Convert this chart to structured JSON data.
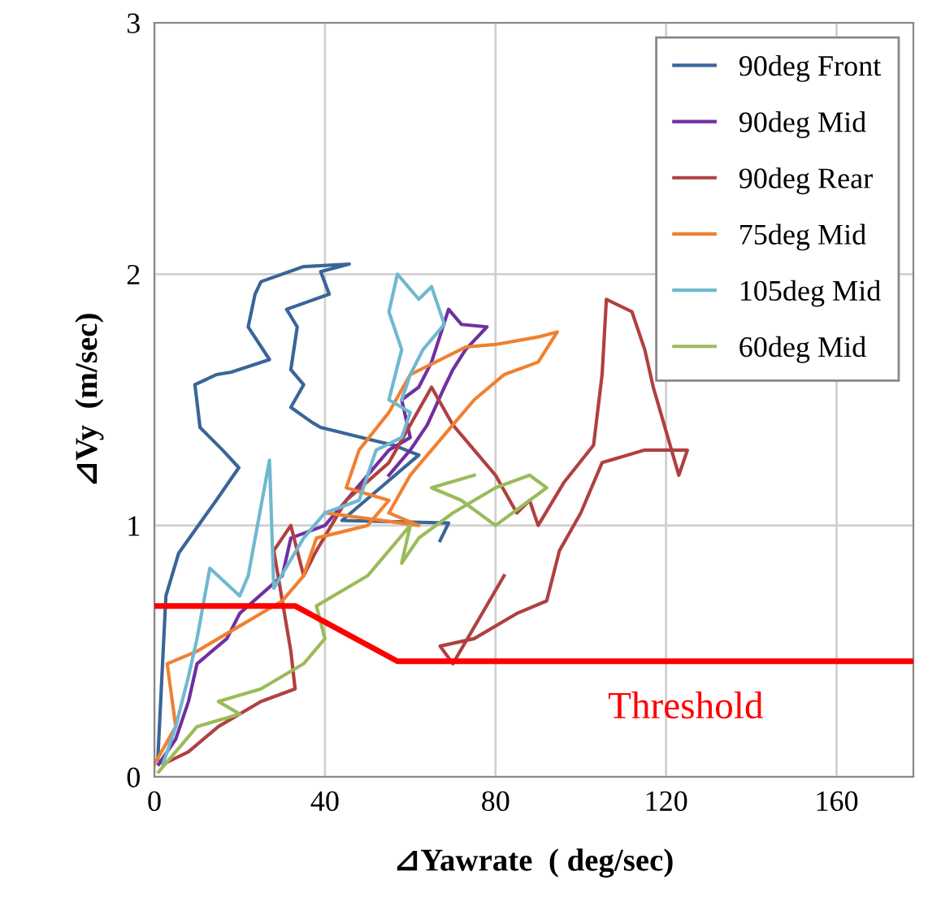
{
  "chart_data": {
    "type": "line",
    "xlabel": "⊿Yawrate  ( deg/sec)",
    "ylabel": "⊿Vy  (m/sec)",
    "xlim": [
      0,
      178
    ],
    "ylim": [
      0,
      3
    ],
    "xticks": [
      0,
      40,
      80,
      120,
      160
    ],
    "yticks": [
      0,
      1,
      2,
      3
    ],
    "grid": true,
    "legend": "top right",
    "marker": "none",
    "line_style": "solid",
    "series": [
      {
        "name": "90deg Front",
        "color": "#3a6598",
        "x": [
          0.8,
          2,
          2.7,
          5.7,
          14.5,
          19.8,
          16,
          10.7,
          10,
          9.5,
          14.5,
          18,
          27,
          22,
          23.6,
          25,
          35,
          45.7,
          39,
          41,
          31,
          33.5,
          32,
          35,
          32,
          37,
          39,
          51,
          56,
          62,
          44,
          69,
          67
        ],
        "values": [
          0.07,
          0.48,
          0.72,
          0.89,
          1.1,
          1.23,
          1.3,
          1.39,
          1.49,
          1.56,
          1.6,
          1.61,
          1.66,
          1.79,
          1.92,
          1.97,
          2.03,
          2.04,
          2.01,
          1.92,
          1.86,
          1.79,
          1.62,
          1.56,
          1.47,
          1.41,
          1.39,
          1.34,
          1.32,
          1.28,
          1.02,
          1.01,
          0.94
        ]
      },
      {
        "name": "90deg Mid",
        "color": "#7030a0",
        "x": [
          1,
          5,
          8,
          10,
          17,
          20,
          30,
          32,
          40,
          45,
          50,
          55,
          60,
          58,
          62,
          65,
          69,
          72,
          78,
          73,
          70,
          68,
          64,
          60,
          55
        ],
        "values": [
          0.05,
          0.15,
          0.3,
          0.45,
          0.55,
          0.65,
          0.8,
          0.95,
          1.0,
          1.1,
          1.2,
          1.3,
          1.35,
          1.5,
          1.55,
          1.65,
          1.86,
          1.8,
          1.79,
          1.7,
          1.62,
          1.55,
          1.4,
          1.3,
          1.2
        ]
      },
      {
        "name": "90deg Rear",
        "color": "#b04040",
        "x": [
          2,
          8,
          15,
          25,
          33,
          32,
          30,
          28,
          32,
          35,
          38,
          45,
          55,
          60,
          65,
          70,
          75,
          80,
          85,
          88,
          90,
          96,
          103,
          105,
          106,
          112,
          115,
          117,
          123,
          125,
          115,
          105,
          100,
          95,
          92,
          85,
          75,
          67,
          70,
          82
        ],
        "values": [
          0.05,
          0.1,
          0.2,
          0.3,
          0.35,
          0.5,
          0.7,
          0.9,
          1.0,
          0.8,
          0.9,
          1.1,
          1.25,
          1.4,
          1.55,
          1.4,
          1.3,
          1.2,
          1.05,
          1.1,
          1.0,
          1.17,
          1.32,
          1.6,
          1.9,
          1.85,
          1.7,
          1.55,
          1.2,
          1.3,
          1.3,
          1.25,
          1.05,
          0.9,
          0.7,
          0.65,
          0.55,
          0.52,
          0.45,
          0.8
        ]
      },
      {
        "name": "75deg Mid",
        "color": "#f08030",
        "x": [
          0,
          5,
          3,
          10,
          20,
          30,
          35,
          38,
          50,
          55,
          45,
          48,
          55,
          60,
          73,
          80,
          90,
          94.5,
          90,
          82,
          75,
          70,
          65,
          60,
          55,
          62,
          40
        ],
        "values": [
          0.05,
          0.2,
          0.45,
          0.5,
          0.6,
          0.7,
          0.8,
          0.95,
          1.0,
          1.1,
          1.15,
          1.3,
          1.45,
          1.6,
          1.71,
          1.72,
          1.75,
          1.77,
          1.65,
          1.6,
          1.5,
          1.4,
          1.3,
          1.2,
          1.05,
          1.0,
          1.05
        ]
      },
      {
        "name": "105deg Mid",
        "color": "#70b8d0",
        "x": [
          2,
          5,
          8,
          10,
          13,
          20,
          22,
          27,
          28,
          35,
          40,
          48,
          52,
          58,
          60,
          55,
          58,
          55,
          57,
          62,
          65,
          68,
          63,
          60,
          58
        ],
        "values": [
          0.05,
          0.2,
          0.4,
          0.55,
          0.83,
          0.72,
          0.8,
          1.26,
          0.75,
          0.95,
          1.05,
          1.1,
          1.3,
          1.35,
          1.45,
          1.5,
          1.7,
          1.85,
          2.0,
          1.9,
          1.95,
          1.8,
          1.7,
          1.6,
          1.5
        ]
      },
      {
        "name": "60deg Mid",
        "color": "#9bbb59",
        "x": [
          1,
          5,
          10,
          20,
          15,
          25,
          35,
          40,
          38,
          45,
          50,
          55,
          60,
          58,
          62,
          70,
          75,
          80,
          88,
          92,
          80,
          72,
          65,
          75
        ],
        "values": [
          0.02,
          0.1,
          0.2,
          0.25,
          0.3,
          0.35,
          0.45,
          0.55,
          0.68,
          0.75,
          0.8,
          0.9,
          1.0,
          0.85,
          0.95,
          1.05,
          1.1,
          1.15,
          1.2,
          1.15,
          1.0,
          1.1,
          1.15,
          1.2
        ]
      },
      {
        "type": "line",
        "color": "#ff0000",
        "x": [
          0,
          33,
          57,
          178
        ],
        "values": [
          0.68,
          0.68,
          0.46,
          0.46
        ]
      }
    ],
    "annotations": [
      "Threshold"
    ]
  }
}
